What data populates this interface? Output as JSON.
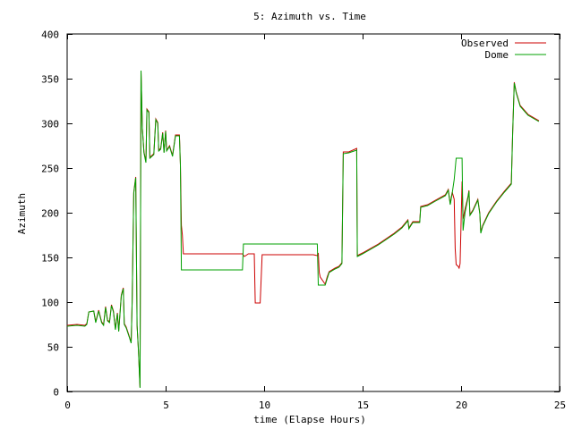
{
  "chart_data": {
    "type": "line",
    "title": "5: Azimuth vs. Time",
    "xlabel": "time (Elapse Hours)",
    "ylabel": "Azimuth",
    "xlim": [
      0,
      25
    ],
    "ylim": [
      0,
      400
    ],
    "xticks": [
      0,
      5,
      10,
      15,
      20,
      25
    ],
    "yticks": [
      0,
      50,
      100,
      150,
      200,
      250,
      300,
      350,
      400
    ],
    "grid": false,
    "legend_position": "top-right",
    "series": [
      {
        "name": "Observed",
        "color": "#cc0000",
        "points": [
          [
            0.0,
            74
          ],
          [
            0.5,
            75
          ],
          [
            0.9,
            74
          ],
          [
            1.0,
            76
          ],
          [
            1.1,
            89
          ],
          [
            1.35,
            90
          ],
          [
            1.45,
            78
          ],
          [
            1.6,
            91
          ],
          [
            1.75,
            78
          ],
          [
            1.85,
            75
          ],
          [
            1.95,
            95
          ],
          [
            2.05,
            80
          ],
          [
            2.15,
            78
          ],
          [
            2.25,
            97
          ],
          [
            2.35,
            90
          ],
          [
            2.45,
            70
          ],
          [
            2.55,
            88
          ],
          [
            2.62,
            68
          ],
          [
            2.75,
            108
          ],
          [
            2.85,
            116
          ],
          [
            2.9,
            76
          ],
          [
            3.0,
            72
          ],
          [
            3.15,
            62
          ],
          [
            3.25,
            55
          ],
          [
            3.3,
            100
          ],
          [
            3.38,
            223
          ],
          [
            3.48,
            240
          ],
          [
            3.55,
            74
          ],
          [
            3.62,
            47
          ],
          [
            3.7,
            5
          ],
          [
            3.75,
            359
          ],
          [
            3.82,
            295
          ],
          [
            3.9,
            268
          ],
          [
            4.0,
            257
          ],
          [
            4.05,
            316
          ],
          [
            4.15,
            313
          ],
          [
            4.2,
            262
          ],
          [
            4.4,
            266
          ],
          [
            4.5,
            305
          ],
          [
            4.6,
            301
          ],
          [
            4.65,
            270
          ],
          [
            4.75,
            272
          ],
          [
            4.85,
            290
          ],
          [
            4.92,
            268
          ],
          [
            5.0,
            292
          ],
          [
            5.05,
            270
          ],
          [
            5.2,
            275
          ],
          [
            5.35,
            264
          ],
          [
            5.5,
            287
          ],
          [
            5.7,
            287
          ],
          [
            5.75,
            254
          ],
          [
            5.8,
            186
          ],
          [
            5.85,
            175
          ],
          [
            5.9,
            154
          ],
          [
            7.0,
            154
          ],
          [
            8.9,
            154
          ],
          [
            9.0,
            151
          ],
          [
            9.2,
            154
          ],
          [
            9.4,
            154
          ],
          [
            9.5,
            154
          ],
          [
            9.55,
            99
          ],
          [
            9.8,
            99
          ],
          [
            9.9,
            153
          ],
          [
            11.0,
            153
          ],
          [
            12.0,
            153
          ],
          [
            12.5,
            153
          ],
          [
            12.7,
            152
          ],
          [
            12.75,
            155
          ],
          [
            12.8,
            133
          ],
          [
            12.85,
            128
          ],
          [
            13.1,
            120
          ],
          [
            13.2,
            128
          ],
          [
            13.3,
            134
          ],
          [
            13.6,
            138
          ],
          [
            13.8,
            140
          ],
          [
            13.95,
            144
          ],
          [
            14.02,
            268
          ],
          [
            14.3,
            268
          ],
          [
            14.7,
            272
          ],
          [
            14.73,
            152
          ],
          [
            15.0,
            155
          ],
          [
            15.8,
            165
          ],
          [
            16.6,
            177
          ],
          [
            17.0,
            184
          ],
          [
            17.3,
            192
          ],
          [
            17.35,
            183
          ],
          [
            17.55,
            190
          ],
          [
            17.9,
            190
          ],
          [
            17.95,
            207
          ],
          [
            18.3,
            209
          ],
          [
            18.7,
            214
          ],
          [
            19.2,
            220
          ],
          [
            19.35,
            226
          ],
          [
            19.45,
            210
          ],
          [
            19.55,
            223
          ],
          [
            19.65,
            215
          ],
          [
            19.7,
            160
          ],
          [
            19.75,
            142
          ],
          [
            19.85,
            140
          ],
          [
            19.9,
            138
          ],
          [
            19.95,
            143
          ],
          [
            20.05,
            235
          ],
          [
            20.1,
            193
          ],
          [
            20.2,
            204
          ],
          [
            20.35,
            218
          ],
          [
            20.4,
            225
          ],
          [
            20.45,
            198
          ],
          [
            20.6,
            203
          ],
          [
            20.85,
            215
          ],
          [
            20.95,
            200
          ],
          [
            21.0,
            178
          ],
          [
            21.1,
            186
          ],
          [
            21.4,
            200
          ],
          [
            21.8,
            213
          ],
          [
            22.2,
            224
          ],
          [
            22.55,
            233
          ],
          [
            22.62,
            290
          ],
          [
            22.7,
            346
          ],
          [
            22.8,
            335
          ],
          [
            23.0,
            320
          ],
          [
            23.4,
            310
          ],
          [
            23.95,
            303
          ]
        ]
      },
      {
        "name": "Dome",
        "color": "#00a000",
        "points": [
          [
            0.0,
            73
          ],
          [
            0.5,
            74
          ],
          [
            0.9,
            73
          ],
          [
            1.0,
            75
          ],
          [
            1.1,
            89
          ],
          [
            1.35,
            90
          ],
          [
            1.45,
            77
          ],
          [
            1.6,
            90
          ],
          [
            1.75,
            77
          ],
          [
            1.85,
            74
          ],
          [
            1.95,
            94
          ],
          [
            2.05,
            79
          ],
          [
            2.15,
            77
          ],
          [
            2.25,
            96
          ],
          [
            2.35,
            89
          ],
          [
            2.45,
            69
          ],
          [
            2.55,
            87
          ],
          [
            2.62,
            67
          ],
          [
            2.75,
            107
          ],
          [
            2.85,
            115
          ],
          [
            2.9,
            75
          ],
          [
            3.0,
            71
          ],
          [
            3.15,
            61
          ],
          [
            3.25,
            54
          ],
          [
            3.3,
            100
          ],
          [
            3.38,
            222
          ],
          [
            3.48,
            239
          ],
          [
            3.55,
            74
          ],
          [
            3.62,
            46
          ],
          [
            3.7,
            4
          ],
          [
            3.75,
            359
          ],
          [
            3.82,
            294
          ],
          [
            3.9,
            267
          ],
          [
            4.0,
            256
          ],
          [
            4.05,
            315
          ],
          [
            4.15,
            312
          ],
          [
            4.2,
            261
          ],
          [
            4.4,
            265
          ],
          [
            4.5,
            304
          ],
          [
            4.6,
            300
          ],
          [
            4.65,
            269
          ],
          [
            4.75,
            271
          ],
          [
            4.85,
            289
          ],
          [
            4.92,
            267
          ],
          [
            5.0,
            291
          ],
          [
            5.05,
            269
          ],
          [
            5.2,
            274
          ],
          [
            5.35,
            263
          ],
          [
            5.5,
            286
          ],
          [
            5.7,
            286
          ],
          [
            5.75,
            253
          ],
          [
            5.8,
            136
          ],
          [
            7.0,
            136
          ],
          [
            8.9,
            136
          ],
          [
            8.95,
            165
          ],
          [
            10.0,
            165
          ],
          [
            12.0,
            165
          ],
          [
            12.7,
            165
          ],
          [
            12.75,
            119
          ],
          [
            13.1,
            119
          ],
          [
            13.2,
            126
          ],
          [
            13.3,
            133
          ],
          [
            13.6,
            137
          ],
          [
            13.8,
            139
          ],
          [
            13.95,
            143
          ],
          [
            14.02,
            266
          ],
          [
            14.3,
            267
          ],
          [
            14.7,
            270
          ],
          [
            14.73,
            151
          ],
          [
            15.0,
            154
          ],
          [
            15.8,
            164
          ],
          [
            16.6,
            176
          ],
          [
            17.0,
            183
          ],
          [
            17.3,
            191
          ],
          [
            17.35,
            182
          ],
          [
            17.55,
            189
          ],
          [
            17.9,
            189
          ],
          [
            17.95,
            206
          ],
          [
            18.3,
            208
          ],
          [
            18.7,
            213
          ],
          [
            19.2,
            219
          ],
          [
            19.35,
            225
          ],
          [
            19.45,
            209
          ],
          [
            19.55,
            222
          ],
          [
            19.65,
            237
          ],
          [
            19.75,
            261
          ],
          [
            20.05,
            261
          ],
          [
            20.1,
            180
          ],
          [
            20.2,
            200
          ],
          [
            20.35,
            217
          ],
          [
            20.4,
            224
          ],
          [
            20.45,
            197
          ],
          [
            20.6,
            202
          ],
          [
            20.85,
            214
          ],
          [
            20.95,
            199
          ],
          [
            21.0,
            177
          ],
          [
            21.1,
            185
          ],
          [
            21.4,
            199
          ],
          [
            21.8,
            212
          ],
          [
            22.2,
            223
          ],
          [
            22.55,
            232
          ],
          [
            22.62,
            289
          ],
          [
            22.7,
            345
          ],
          [
            22.8,
            334
          ],
          [
            23.0,
            319
          ],
          [
            23.4,
            309
          ],
          [
            23.95,
            302
          ]
        ]
      }
    ]
  }
}
